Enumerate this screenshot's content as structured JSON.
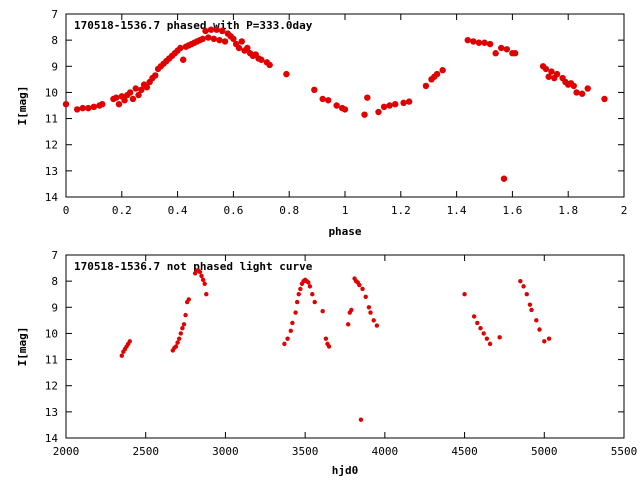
{
  "chart_data": [
    {
      "type": "scatter",
      "title": "170518-1536.7 phased with P=333.0day",
      "xlabel": "phase",
      "ylabel": "I[mag]",
      "xlim": [
        0,
        2
      ],
      "ylim": [
        14,
        7
      ],
      "y_inverted": true,
      "xticks": [
        "0",
        "0.2",
        "0.4",
        "0.6",
        "0.8",
        "1",
        "1.2",
        "1.4",
        "1.6",
        "1.8",
        "2"
      ],
      "yticks": [
        "7",
        "8",
        "9",
        "10",
        "11",
        "12",
        "13",
        "14"
      ],
      "marker_color": "#e00000",
      "series": [
        {
          "points": [
            [
              0.0,
              10.45
            ],
            [
              0.04,
              10.65
            ],
            [
              0.06,
              10.6
            ],
            [
              0.08,
              10.6
            ],
            [
              0.1,
              10.55
            ],
            [
              0.12,
              10.5
            ],
            [
              0.13,
              10.45
            ],
            [
              0.17,
              10.25
            ],
            [
              0.18,
              10.2
            ],
            [
              0.19,
              10.45
            ],
            [
              0.2,
              10.15
            ],
            [
              0.21,
              10.3
            ],
            [
              0.22,
              10.1
            ],
            [
              0.23,
              10.0
            ],
            [
              0.24,
              10.25
            ],
            [
              0.25,
              9.85
            ],
            [
              0.26,
              10.1
            ],
            [
              0.27,
              9.9
            ],
            [
              0.28,
              9.7
            ],
            [
              0.29,
              9.8
            ],
            [
              0.3,
              9.6
            ],
            [
              0.31,
              9.45
            ],
            [
              0.32,
              9.35
            ],
            [
              0.33,
              9.1
            ],
            [
              0.34,
              9.0
            ],
            [
              0.35,
              8.9
            ],
            [
              0.36,
              8.8
            ],
            [
              0.37,
              8.7
            ],
            [
              0.38,
              8.6
            ],
            [
              0.39,
              8.5
            ],
            [
              0.4,
              8.4
            ],
            [
              0.41,
              8.3
            ],
            [
              0.42,
              8.75
            ],
            [
              0.43,
              8.25
            ],
            [
              0.44,
              8.2
            ],
            [
              0.45,
              8.15
            ],
            [
              0.46,
              8.1
            ],
            [
              0.47,
              8.05
            ],
            [
              0.48,
              8.0
            ],
            [
              0.49,
              7.95
            ],
            [
              0.5,
              7.65
            ],
            [
              0.51,
              7.9
            ],
            [
              0.52,
              7.6
            ],
            [
              0.53,
              7.95
            ],
            [
              0.54,
              7.6
            ],
            [
              0.55,
              8.0
            ],
            [
              0.56,
              7.65
            ],
            [
              0.57,
              8.05
            ],
            [
              0.58,
              7.75
            ],
            [
              0.59,
              7.85
            ],
            [
              0.6,
              7.95
            ],
            [
              0.61,
              8.15
            ],
            [
              0.62,
              8.3
            ],
            [
              0.63,
              8.05
            ],
            [
              0.64,
              8.4
            ],
            [
              0.65,
              8.3
            ],
            [
              0.66,
              8.5
            ],
            [
              0.67,
              8.6
            ],
            [
              0.68,
              8.55
            ],
            [
              0.69,
              8.7
            ],
            [
              0.7,
              8.75
            ],
            [
              0.72,
              8.85
            ],
            [
              0.73,
              8.95
            ],
            [
              0.79,
              9.3
            ],
            [
              0.89,
              9.9
            ],
            [
              0.92,
              10.25
            ],
            [
              0.94,
              10.3
            ],
            [
              0.97,
              10.5
            ],
            [
              0.99,
              10.6
            ],
            [
              1.0,
              10.65
            ],
            [
              1.07,
              10.85
            ],
            [
              1.08,
              10.2
            ],
            [
              1.12,
              10.75
            ],
            [
              1.14,
              10.55
            ],
            [
              1.16,
              10.5
            ],
            [
              1.18,
              10.45
            ],
            [
              1.21,
              10.4
            ],
            [
              1.23,
              10.35
            ],
            [
              1.29,
              9.75
            ],
            [
              1.31,
              9.5
            ],
            [
              1.32,
              9.4
            ],
            [
              1.33,
              9.3
            ],
            [
              1.35,
              9.15
            ],
            [
              1.44,
              8.0
            ],
            [
              1.46,
              8.05
            ],
            [
              1.48,
              8.1
            ],
            [
              1.5,
              8.1
            ],
            [
              1.52,
              8.15
            ],
            [
              1.54,
              8.5
            ],
            [
              1.56,
              8.3
            ],
            [
              1.57,
              13.3
            ],
            [
              1.58,
              8.35
            ],
            [
              1.6,
              8.5
            ],
            [
              1.61,
              8.5
            ],
            [
              1.71,
              9.0
            ],
            [
              1.72,
              9.1
            ],
            [
              1.73,
              9.4
            ],
            [
              1.74,
              9.2
            ],
            [
              1.75,
              9.45
            ],
            [
              1.76,
              9.3
            ],
            [
              1.78,
              9.45
            ],
            [
              1.79,
              9.6
            ],
            [
              1.8,
              9.7
            ],
            [
              1.81,
              9.65
            ],
            [
              1.82,
              9.75
            ],
            [
              1.83,
              10.0
            ],
            [
              1.85,
              10.05
            ],
            [
              1.87,
              9.85
            ],
            [
              1.93,
              10.25
            ]
          ]
        }
      ]
    },
    {
      "type": "scatter",
      "title": "170518-1536.7 not phased light curve",
      "xlabel": "hjd0",
      "ylabel": "I[mag]",
      "xlim": [
        2000,
        5500
      ],
      "ylim": [
        14,
        7
      ],
      "y_inverted": true,
      "xticks": [
        "2000",
        "2500",
        "3000",
        "3500",
        "4000",
        "4500",
        "5000",
        "5500"
      ],
      "yticks": [
        "7",
        "8",
        "9",
        "10",
        "11",
        "12",
        "13",
        "14"
      ],
      "marker_color": "#e00000",
      "series": [
        {
          "points": [
            [
              2350,
              10.85
            ],
            [
              2360,
              10.7
            ],
            [
              2370,
              10.6
            ],
            [
              2380,
              10.5
            ],
            [
              2390,
              10.4
            ],
            [
              2400,
              10.3
            ],
            [
              2670,
              10.65
            ],
            [
              2680,
              10.55
            ],
            [
              2690,
              10.5
            ],
            [
              2700,
              10.35
            ],
            [
              2710,
              10.2
            ],
            [
              2720,
              10.0
            ],
            [
              2730,
              9.8
            ],
            [
              2740,
              9.65
            ],
            [
              2750,
              9.3
            ],
            [
              2760,
              8.8
            ],
            [
              2770,
              8.7
            ],
            [
              2810,
              7.7
            ],
            [
              2820,
              7.6
            ],
            [
              2830,
              7.6
            ],
            [
              2840,
              7.65
            ],
            [
              2850,
              7.8
            ],
            [
              2860,
              7.95
            ],
            [
              2870,
              8.1
            ],
            [
              2880,
              8.5
            ],
            [
              3370,
              10.4
            ],
            [
              3390,
              10.2
            ],
            [
              3410,
              9.9
            ],
            [
              3420,
              9.6
            ],
            [
              3440,
              9.2
            ],
            [
              3450,
              8.8
            ],
            [
              3460,
              8.5
            ],
            [
              3470,
              8.3
            ],
            [
              3480,
              8.1
            ],
            [
              3490,
              8.0
            ],
            [
              3500,
              7.95
            ],
            [
              3510,
              8.0
            ],
            [
              3520,
              8.05
            ],
            [
              3530,
              8.2
            ],
            [
              3545,
              8.5
            ],
            [
              3560,
              8.8
            ],
            [
              3610,
              9.15
            ],
            [
              3630,
              10.2
            ],
            [
              3640,
              10.4
            ],
            [
              3650,
              10.5
            ],
            [
              3770,
              9.65
            ],
            [
              3780,
              9.2
            ],
            [
              3790,
              9.1
            ],
            [
              3810,
              7.9
            ],
            [
              3820,
              8.0
            ],
            [
              3830,
              8.05
            ],
            [
              3840,
              8.15
            ],
            [
              3850,
              13.3
            ],
            [
              3860,
              8.3
            ],
            [
              3880,
              8.6
            ],
            [
              3900,
              9.0
            ],
            [
              3910,
              9.2
            ],
            [
              3930,
              9.5
            ],
            [
              3950,
              9.7
            ],
            [
              4500,
              8.5
            ],
            [
              4560,
              9.35
            ],
            [
              4580,
              9.6
            ],
            [
              4600,
              9.8
            ],
            [
              4620,
              10.0
            ],
            [
              4640,
              10.2
            ],
            [
              4660,
              10.4
            ],
            [
              4720,
              10.15
            ],
            [
              4850,
              8.0
            ],
            [
              4870,
              8.2
            ],
            [
              4890,
              8.5
            ],
            [
              4910,
              8.9
            ],
            [
              4920,
              9.1
            ],
            [
              4950,
              9.5
            ],
            [
              4970,
              9.85
            ],
            [
              5000,
              10.3
            ],
            [
              5030,
              10.2
            ]
          ]
        }
      ]
    }
  ]
}
